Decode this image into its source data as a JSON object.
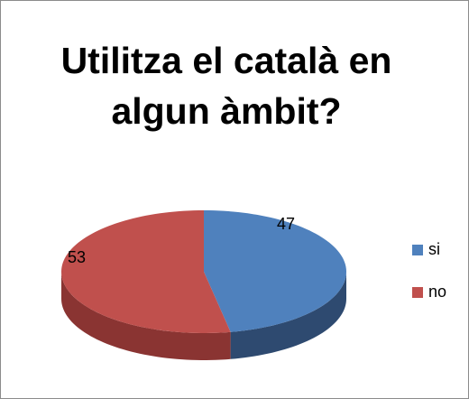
{
  "chart_data": {
    "type": "pie",
    "title": "Utilitza el català en algun àmbit?",
    "categories": [
      "si",
      "no"
    ],
    "values": [
      47,
      53
    ],
    "colors": [
      "#4f81bd",
      "#c0504d"
    ],
    "side_colors": [
      "#2e4a70",
      "#8a3432"
    ],
    "legend": "right"
  }
}
